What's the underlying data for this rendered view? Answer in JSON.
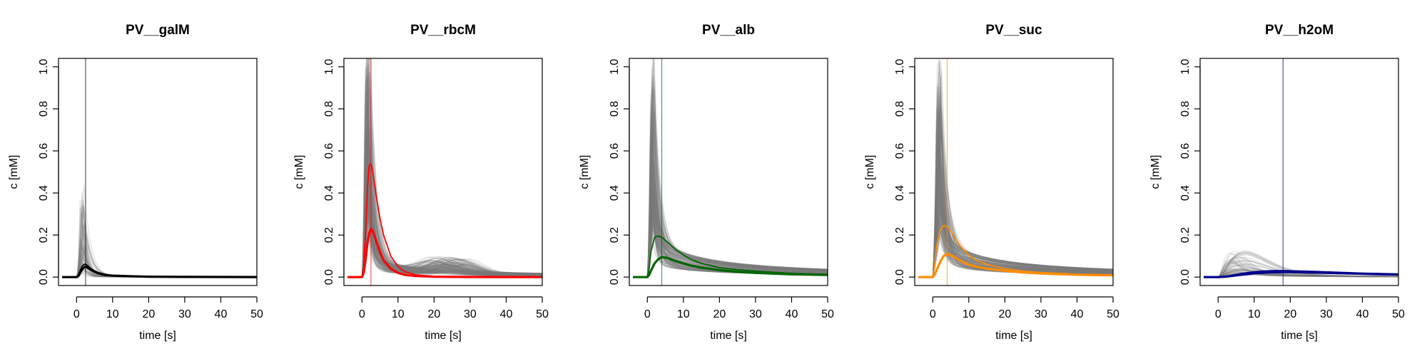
{
  "chart_data": [
    {
      "type": "line",
      "title": "PV__galM",
      "xlabel": "time [s]",
      "ylabel": "c [mM]",
      "xlim": [
        -5,
        50
      ],
      "ylim": [
        0,
        1
      ],
      "xticks": [
        0,
        10,
        20,
        30,
        40,
        50
      ],
      "yticks": [
        0.0,
        0.2,
        0.4,
        0.6,
        0.8,
        1.0
      ],
      "ytick_labels": [
        "0.0",
        "0.2",
        "0.4",
        "0.6",
        "0.8",
        "1.0"
      ],
      "grid": false,
      "color": "#000000",
      "vline_x": 2.5,
      "series": [
        {
          "role": "mean",
          "x": [
            -4,
            0,
            0.5,
            1,
            1.5,
            2,
            2.5,
            3,
            4,
            5,
            6,
            8,
            10,
            15,
            20,
            30,
            40,
            50
          ],
          "y": [
            0,
            0,
            0.005,
            0.02,
            0.035,
            0.045,
            0.05,
            0.045,
            0.035,
            0.025,
            0.018,
            0.01,
            0.007,
            0.004,
            0.002,
            0.001,
            0.0005,
            0.0002
          ]
        },
        {
          "role": "peak",
          "x": [
            -4,
            0,
            0.5,
            1,
            1.5,
            2,
            2.5,
            3,
            4,
            5,
            6,
            8,
            10,
            15,
            20,
            30,
            40,
            50
          ],
          "y": [
            0,
            0,
            0.01,
            0.03,
            0.05,
            0.06,
            0.062,
            0.055,
            0.04,
            0.03,
            0.022,
            0.013,
            0.008,
            0.004,
            0.002,
            0.001,
            0.0005,
            0.0002
          ]
        }
      ]
    },
    {
      "type": "line",
      "title": "PV__rbcM",
      "xlabel": "time [s]",
      "ylabel": "c [mM]",
      "xlim": [
        -5,
        50
      ],
      "ylim": [
        0,
        1
      ],
      "xticks": [
        0,
        10,
        20,
        30,
        40,
        50
      ],
      "yticks": [
        0.0,
        0.2,
        0.4,
        0.6,
        0.8,
        1.0
      ],
      "ytick_labels": [
        "0.0",
        "0.2",
        "0.4",
        "0.6",
        "0.8",
        "1.0"
      ],
      "grid": false,
      "color": "#ff0000",
      "vline_x": 2.5,
      "series": [
        {
          "role": "mean",
          "x": [
            -4,
            0,
            0.5,
            1,
            1.5,
            2,
            2.5,
            3,
            4,
            5,
            6,
            8,
            10,
            12,
            15,
            20,
            25,
            30,
            40,
            50
          ],
          "y": [
            0,
            0,
            0.02,
            0.08,
            0.16,
            0.21,
            0.23,
            0.22,
            0.17,
            0.12,
            0.08,
            0.04,
            0.02,
            0.01,
            0.005,
            0.002,
            0.001,
            0.0005,
            0.0002,
            0.0001
          ]
        },
        {
          "role": "peak",
          "x": [
            -4,
            0,
            0.5,
            1,
            1.5,
            2,
            2.5,
            3,
            4,
            5,
            6,
            8,
            10,
            12,
            15,
            20,
            25,
            30,
            40,
            50
          ],
          "y": [
            0,
            0,
            0.05,
            0.2,
            0.42,
            0.53,
            0.54,
            0.5,
            0.38,
            0.28,
            0.2,
            0.1,
            0.05,
            0.025,
            0.01,
            0.004,
            0.002,
            0.001,
            0.0005,
            0.0002
          ]
        }
      ]
    },
    {
      "type": "line",
      "title": "PV__alb",
      "xlabel": "time [s]",
      "ylabel": "c [mM]",
      "xlim": [
        -5,
        50
      ],
      "ylim": [
        0,
        1
      ],
      "xticks": [
        0,
        10,
        20,
        30,
        40,
        50
      ],
      "yticks": [
        0.0,
        0.2,
        0.4,
        0.6,
        0.8,
        1.0
      ],
      "ytick_labels": [
        "0.0",
        "0.2",
        "0.4",
        "0.6",
        "0.8",
        "1.0"
      ],
      "grid": false,
      "color": "#006400",
      "vline_x": 4,
      "series": [
        {
          "role": "mean",
          "x": [
            -4,
            0,
            0.5,
            1,
            2,
            3,
            4,
            5,
            6,
            8,
            10,
            12,
            15,
            20,
            25,
            30,
            40,
            50
          ],
          "y": [
            0,
            0,
            0.01,
            0.03,
            0.065,
            0.085,
            0.095,
            0.093,
            0.088,
            0.075,
            0.065,
            0.055,
            0.045,
            0.033,
            0.025,
            0.02,
            0.013,
            0.01
          ]
        },
        {
          "role": "peak",
          "x": [
            -4,
            0,
            0.5,
            1,
            2,
            3,
            4,
            5,
            6,
            8,
            10,
            12,
            15,
            20,
            25,
            30,
            40,
            50
          ],
          "y": [
            0,
            0,
            0.04,
            0.12,
            0.19,
            0.195,
            0.19,
            0.175,
            0.16,
            0.13,
            0.105,
            0.085,
            0.065,
            0.045,
            0.035,
            0.028,
            0.018,
            0.013
          ]
        }
      ]
    },
    {
      "type": "line",
      "title": "PV__suc",
      "xlabel": "time [s]",
      "ylabel": "c [mM]",
      "xlim": [
        -5,
        50
      ],
      "ylim": [
        0,
        1
      ],
      "xticks": [
        0,
        10,
        20,
        30,
        40,
        50
      ],
      "yticks": [
        0.0,
        0.2,
        0.4,
        0.6,
        0.8,
        1.0
      ],
      "ytick_labels": [
        "0.0",
        "0.2",
        "0.4",
        "0.6",
        "0.8",
        "1.0"
      ],
      "grid": false,
      "color": "#ff8c00",
      "vline_x": 4,
      "series": [
        {
          "role": "mean",
          "x": [
            -4,
            0,
            0.5,
            1,
            2,
            3,
            4,
            5,
            6,
            8,
            10,
            12,
            15,
            20,
            25,
            30,
            40,
            50
          ],
          "y": [
            0,
            0,
            0.01,
            0.03,
            0.07,
            0.1,
            0.11,
            0.105,
            0.095,
            0.075,
            0.06,
            0.05,
            0.04,
            0.03,
            0.022,
            0.017,
            0.011,
            0.008
          ]
        },
        {
          "role": "peak",
          "x": [
            -4,
            0,
            0.5,
            1,
            2,
            3,
            4,
            5,
            6,
            8,
            10,
            12,
            15,
            20,
            25,
            30,
            40,
            50
          ],
          "y": [
            0,
            0,
            0.05,
            0.14,
            0.22,
            0.245,
            0.24,
            0.22,
            0.19,
            0.14,
            0.105,
            0.08,
            0.06,
            0.04,
            0.028,
            0.022,
            0.014,
            0.01
          ]
        }
      ]
    },
    {
      "type": "line",
      "title": "PV__h2oM",
      "xlabel": "time [s]",
      "ylabel": "c [mM]",
      "xlim": [
        -5,
        50
      ],
      "ylim": [
        0,
        1
      ],
      "xticks": [
        0,
        10,
        20,
        30,
        40,
        50
      ],
      "yticks": [
        0.0,
        0.2,
        0.4,
        0.6,
        0.8,
        1.0
      ],
      "ytick_labels": [
        "0.0",
        "0.2",
        "0.4",
        "0.6",
        "0.8",
        "1.0"
      ],
      "grid": false,
      "color": "#00008b",
      "vline_x": 18,
      "series": [
        {
          "role": "mean",
          "x": [
            -4,
            0,
            2,
            4,
            6,
            8,
            10,
            12,
            14,
            16,
            18,
            20,
            25,
            30,
            35,
            40,
            45,
            50
          ],
          "y": [
            0,
            0,
            0.002,
            0.006,
            0.01,
            0.014,
            0.018,
            0.02,
            0.022,
            0.023,
            0.024,
            0.024,
            0.022,
            0.02,
            0.018,
            0.016,
            0.014,
            0.012
          ]
        },
        {
          "role": "peak",
          "x": [
            -4,
            0,
            2,
            4,
            6,
            8,
            10,
            12,
            14,
            16,
            18,
            20,
            25,
            30,
            35,
            40,
            45,
            50
          ],
          "y": [
            0,
            0,
            0.004,
            0.01,
            0.016,
            0.021,
            0.025,
            0.028,
            0.03,
            0.031,
            0.031,
            0.03,
            0.028,
            0.025,
            0.022,
            0.019,
            0.017,
            0.015
          ]
        }
      ]
    }
  ]
}
